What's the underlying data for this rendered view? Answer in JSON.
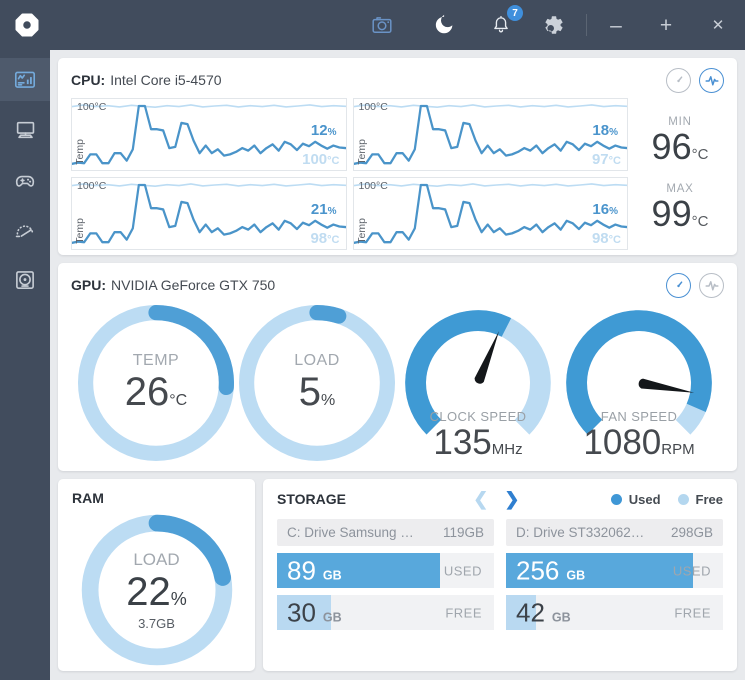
{
  "topbar": {
    "notification_count": "7"
  },
  "cpu": {
    "label": "CPU:",
    "name": "Intel Core i5-4570",
    "charts": [
      {
        "axis_max": "100°C",
        "axis_label": "Temp",
        "load": "12",
        "load_unit": "%",
        "temp": "100",
        "temp_unit": "°C"
      },
      {
        "axis_max": "100°C",
        "axis_label": "Temp",
        "load": "18",
        "load_unit": "%",
        "temp": "97",
        "temp_unit": "°C"
      },
      {
        "axis_max": "100°C",
        "axis_label": "Temp",
        "load": "21",
        "load_unit": "%",
        "temp": "98",
        "temp_unit": "°C"
      },
      {
        "axis_max": "100°C",
        "axis_label": "Temp",
        "load": "16",
        "load_unit": "%",
        "temp": "98",
        "temp_unit": "°C"
      }
    ],
    "min_label": "MIN",
    "min_value": "96",
    "min_unit": "°C",
    "max_label": "MAX",
    "max_value": "99",
    "max_unit": "°C"
  },
  "gpu": {
    "label": "GPU:",
    "name": "NVIDIA GeForce GTX 750",
    "gauges": {
      "temp": {
        "label": "TEMP",
        "value": "26",
        "unit": "°C",
        "pct": 26
      },
      "load": {
        "label": "LOAD",
        "value": "5",
        "unit": "%",
        "pct": 5
      },
      "clock": {
        "label": "CLOCK SPEED",
        "value": "135",
        "unit": "MHz",
        "arc_pct": 60,
        "needle_deg": 22
      },
      "fan": {
        "label": "FAN SPEED",
        "value": "1080",
        "unit": "RPM",
        "arc_pct": 92,
        "needle_deg": 100
      }
    }
  },
  "ram": {
    "title": "RAM",
    "label": "LOAD",
    "value": "22",
    "unit": "%",
    "sub": "3.7GB",
    "pct": 22
  },
  "storage": {
    "title": "STORAGE",
    "legend_used": "Used",
    "legend_free": "Free",
    "drives": [
      {
        "name": "C: Drive Samsung …",
        "size": "119GB",
        "used_value": "89",
        "used_unit": "GB",
        "used_label": "USED",
        "used_pct": 75,
        "free_value": "30",
        "free_unit": "GB",
        "free_label": "FREE",
        "free_pct": 25
      },
      {
        "name": "D: Drive ST332062…",
        "size": "298GB",
        "used_value": "256",
        "used_unit": "GB",
        "used_label": "USED",
        "used_pct": 86,
        "free_value": "42",
        "free_unit": "GB",
        "free_label": "FREE",
        "free_pct": 14
      }
    ]
  },
  "chart_data": {
    "type": "line",
    "title": "CPU per-core temperature sparklines (4 charts)",
    "ylabel": "Temp",
    "y_max_label": "100°C",
    "series": [
      {
        "name": "core-temp",
        "values": [
          0.05,
          0.07,
          0.06,
          0.2,
          0.2,
          0.06,
          0.06,
          0.22,
          0.22,
          0.1,
          0.28,
          0.97,
          0.97,
          0.6,
          0.6,
          0.58,
          0.3,
          0.32,
          0.7,
          0.68,
          0.42,
          0.22,
          0.34,
          0.22,
          0.28,
          0.18,
          0.2,
          0.24,
          0.3,
          0.26,
          0.34,
          0.22,
          0.3,
          0.36,
          0.26,
          0.4,
          0.36,
          0.27,
          0.37,
          0.33,
          0.4,
          0.34,
          0.29,
          0.34,
          0.31,
          0.3
        ]
      },
      {
        "name": "ceiling-line",
        "values": [
          0.96,
          0.985,
          0.96,
          0.975,
          0.955,
          0.98,
          0.965,
          0.95,
          0.975,
          0.96,
          0.985,
          0.955,
          0.97,
          0.98,
          0.955,
          0.975,
          0.96,
          0.98,
          0.955,
          0.97,
          0.985,
          0.96,
          0.975,
          0.965
        ]
      }
    ]
  },
  "colors": {
    "topbar": "#414c5d",
    "accent": "#4f9fd6",
    "accent_strong": "#3f9ad4",
    "light_blue": "#bcdcf3",
    "bar_used": "#58a8dc",
    "bar_free": "#b9d9f1",
    "badge": "#3f8fdc"
  },
  "icons": {
    "topbar": [
      "camera",
      "moon",
      "bell",
      "gear",
      "minimize",
      "maximize",
      "close"
    ],
    "sidebar": [
      "monitoring",
      "pc",
      "games",
      "performance",
      "cooler"
    ],
    "card_toggles": [
      "gauge-view",
      "graph-view"
    ],
    "storage_nav": [
      "chevron-left",
      "chevron-right"
    ]
  }
}
